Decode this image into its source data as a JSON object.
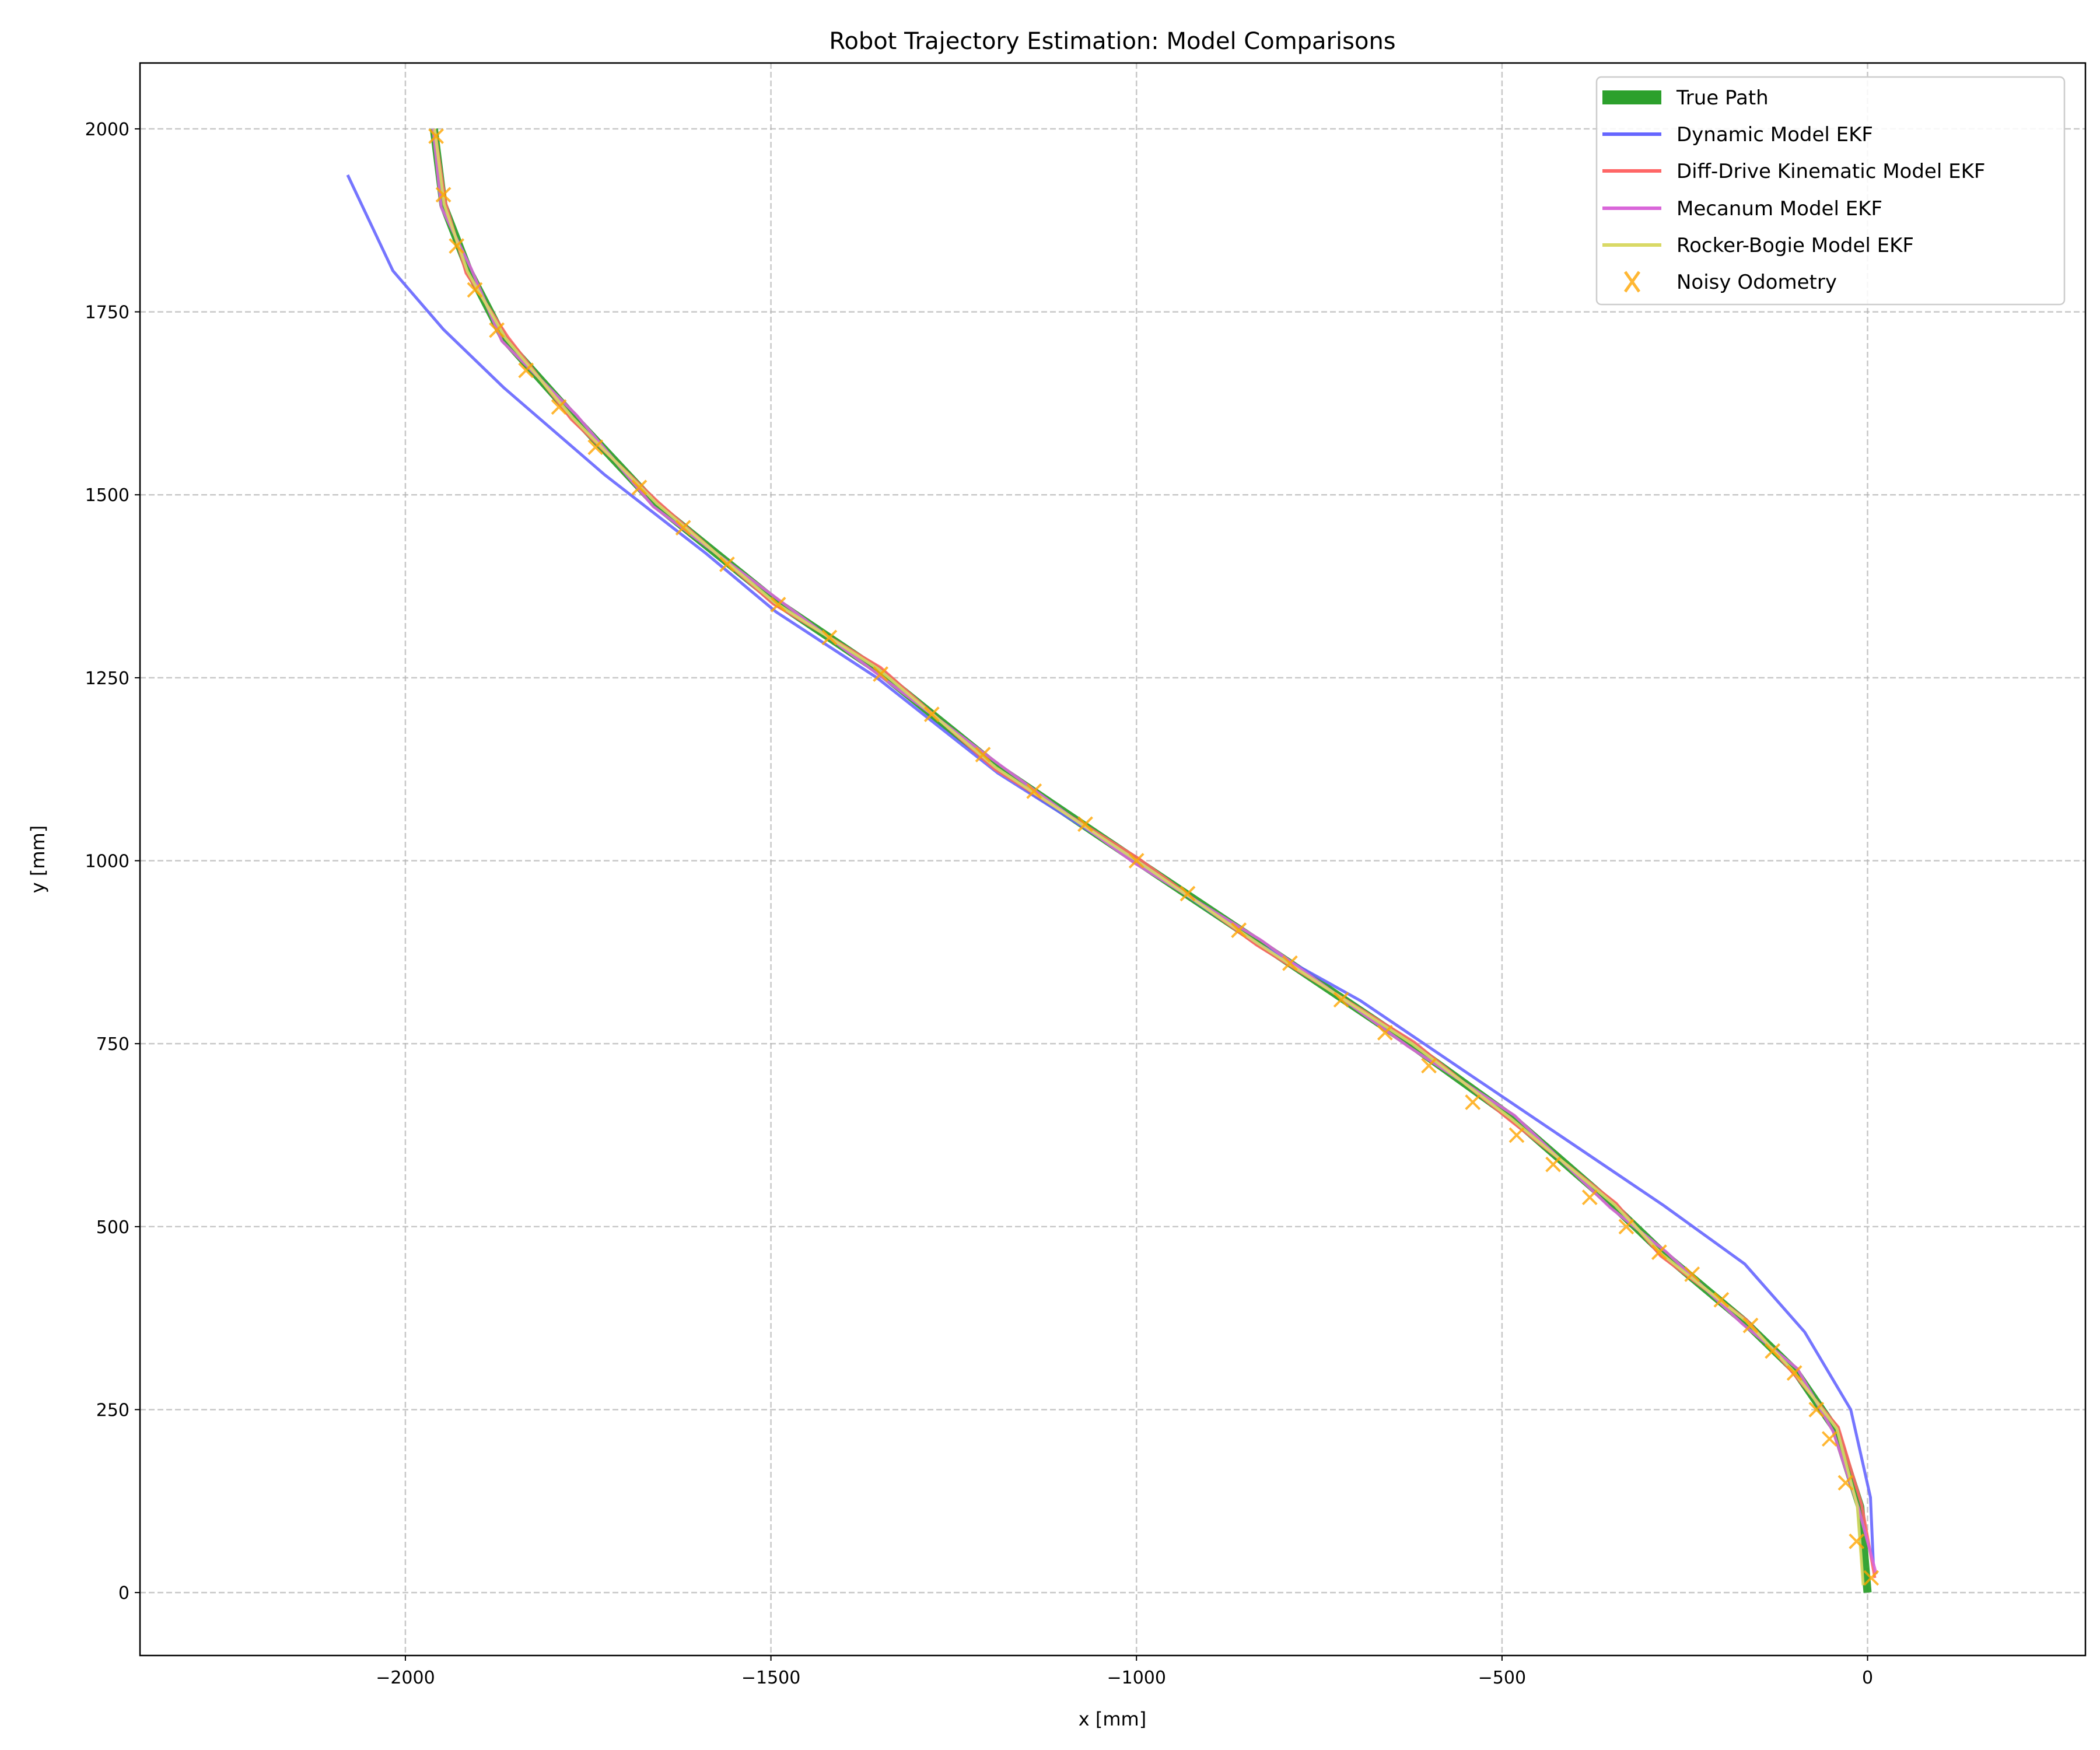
{
  "chart_data": {
    "type": "line",
    "title": "Robot Trajectory Estimation: Model Comparisons",
    "xlabel": "x [mm]",
    "ylabel": "y [mm]",
    "xlim": [
      -2363,
      298
    ],
    "ylim": [
      -86,
      2090
    ],
    "xticks": [
      -2000,
      -1500,
      -1000,
      -500,
      0
    ],
    "yticks": [
      0,
      250,
      500,
      750,
      1000,
      1250,
      1500,
      1750,
      2000
    ],
    "grid": true,
    "legend_position": "top-right",
    "series": [
      {
        "name": "True Path",
        "kind": "line",
        "color": "#2ca02c",
        "x": [
          0,
          -10,
          -44,
          -99,
          -168,
          -279,
          -348,
          -486,
          -625,
          -832,
          -1000,
          -1190,
          -1355,
          -1493,
          -1658,
          -1769,
          -1865,
          -1913,
          -1948,
          -1961
        ],
        "y": [
          0,
          117,
          223,
          303,
          370,
          463,
          529,
          649,
          749,
          888,
          1000,
          1128,
          1261,
          1354,
          1487,
          1606,
          1713,
          1806,
          1896,
          2000
        ]
      },
      {
        "name": "Dynamic Model EKF",
        "kind": "line",
        "color": "#6666ff",
        "x": [
          8,
          4,
          -23,
          -86,
          -168,
          -279,
          -417,
          -555,
          -694,
          -840,
          -1000,
          -1190,
          -1355,
          -1493,
          -1589,
          -1727,
          -1865,
          -1948,
          -2017,
          -2079
        ],
        "y": [
          37,
          130,
          250,
          356,
          449,
          529,
          622,
          715,
          809,
          890,
          1000,
          1120,
          1250,
          1340,
          1420,
          1527,
          1646,
          1726,
          1806,
          1937
        ]
      },
      {
        "name": "Diff-Drive Kinematic Model EKF",
        "kind": "line",
        "color": "#ff6666",
        "x": [
          10,
          -8,
          -40,
          -102,
          -165,
          -283,
          -344,
          -490,
          -620,
          -836,
          -997,
          -1194,
          -1350,
          -1497,
          -1654,
          -1773,
          -1860,
          -1917,
          -1945,
          -1960
        ],
        "y": [
          20,
          120,
          226,
          300,
          372,
          460,
          532,
          646,
          752,
          885,
          1003,
          1125,
          1264,
          1351,
          1490,
          1603,
          1716,
          1803,
          1899,
          2000
        ]
      },
      {
        "name": "Mecanum Model EKF",
        "kind": "line",
        "color": "#d966d9",
        "x": [
          12,
          -12,
          -47,
          -96,
          -171,
          -276,
          -352,
          -483,
          -628,
          -829,
          -1003,
          -1187,
          -1358,
          -1490,
          -1661,
          -1766,
          -1868,
          -1910,
          -1951,
          -1962
        ],
        "y": [
          25,
          114,
          220,
          306,
          367,
          466,
          526,
          652,
          746,
          891,
          997,
          1131,
          1258,
          1357,
          1484,
          1609,
          1710,
          1809,
          1893,
          2000
        ]
      },
      {
        "name": "Rocker-Bogie Model EKF",
        "kind": "line",
        "color": "#d9d966",
        "x": [
          -6,
          -14,
          -42,
          -101,
          -166,
          -281,
          -346,
          -488,
          -623,
          -834,
          -1001,
          -1192,
          -1353,
          -1495,
          -1656,
          -1771,
          -1863,
          -1915,
          -1947,
          -1960
        ],
        "y": [
          10,
          118,
          224,
          302,
          371,
          462,
          530,
          648,
          750,
          887,
          1001,
          1127,
          1262,
          1353,
          1488,
          1605,
          1714,
          1805,
          1897,
          2000
        ]
      },
      {
        "name": "Noisy Odometry",
        "kind": "scatter",
        "color": "#ffa500",
        "marker": "x",
        "x": [
          5,
          -15,
          -30,
          -52,
          -70,
          -100,
          -130,
          -160,
          -200,
          -240,
          -285,
          -330,
          -380,
          -430,
          -480,
          -540,
          -600,
          -660,
          -720,
          -790,
          -860,
          -930,
          -1000,
          -1070,
          -1140,
          -1210,
          -1280,
          -1350,
          -1420,
          -1490,
          -1560,
          -1620,
          -1680,
          -1740,
          -1790,
          -1835,
          -1875,
          -1905,
          -1930,
          -1948,
          -1958
        ],
        "y": [
          20,
          70,
          150,
          210,
          250,
          300,
          330,
          365,
          400,
          435,
          465,
          500,
          540,
          585,
          625,
          670,
          720,
          765,
          810,
          860,
          905,
          955,
          1000,
          1050,
          1095,
          1145,
          1200,
          1255,
          1305,
          1350,
          1405,
          1455,
          1510,
          1565,
          1620,
          1670,
          1725,
          1780,
          1840,
          1910,
          1990
        ]
      }
    ]
  }
}
